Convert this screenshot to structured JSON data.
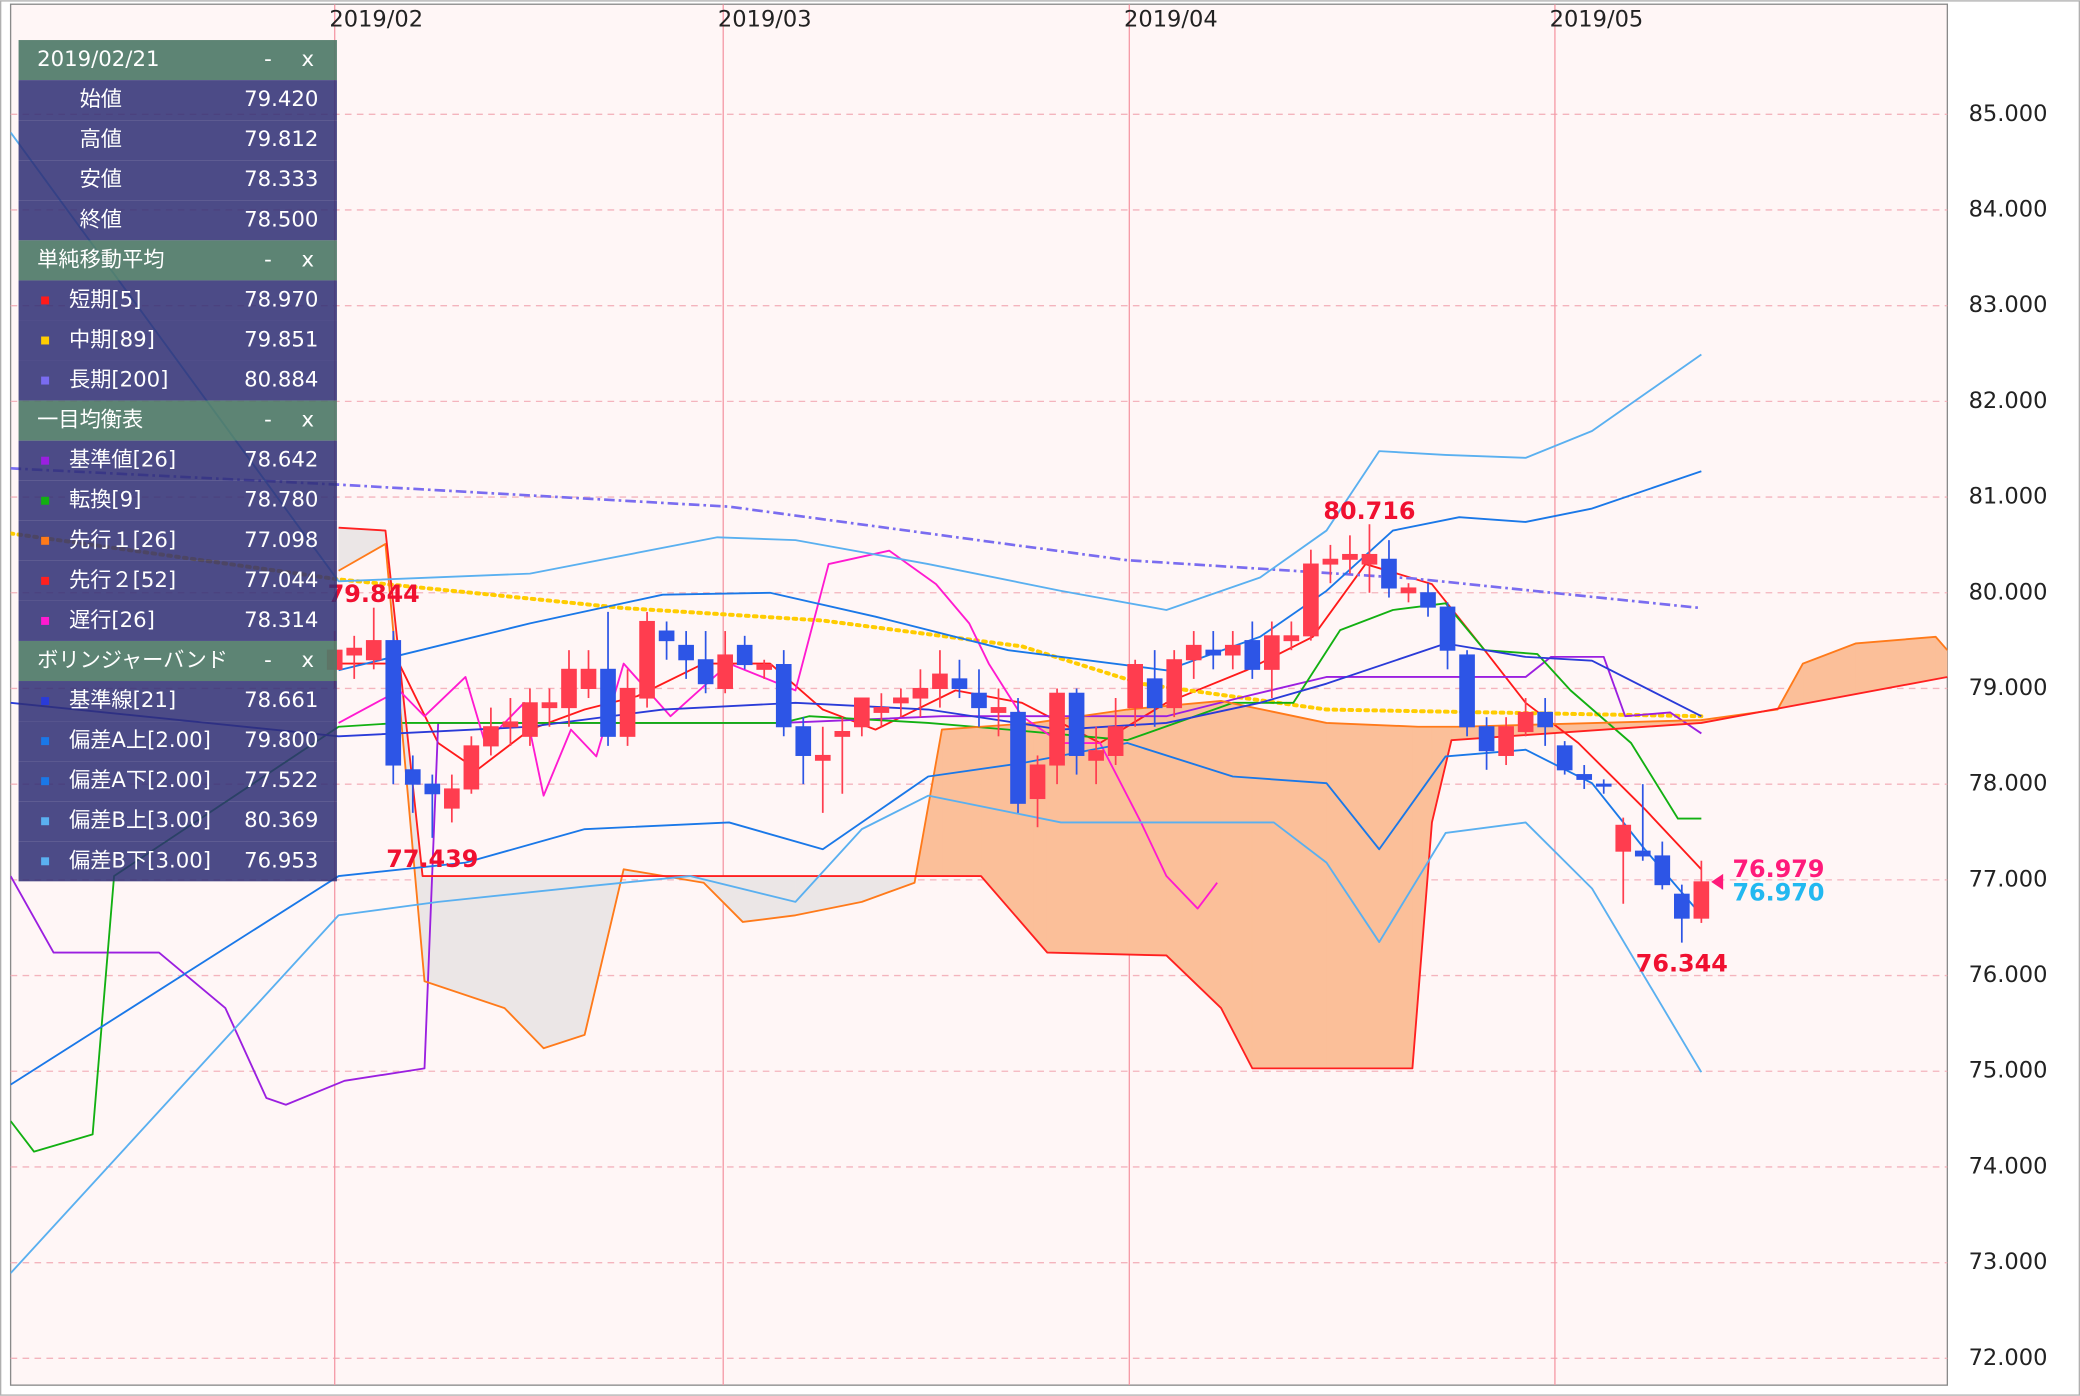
{
  "chart_data": {
    "type": "candlestick",
    "xlim": [
      -16.6,
      82.6
    ],
    "ylim": [
      71.72,
      86.15
    ],
    "xticks": [
      {
        "value": 0,
        "label": "2019/02"
      },
      {
        "value": 19.9,
        "label": "2019/03"
      },
      {
        "value": 40.7,
        "label": "2019/04"
      },
      {
        "value": 62.5,
        "label": "2019/05"
      }
    ],
    "yticks": [
      {
        "value": 72,
        "label": "72.000"
      },
      {
        "value": 73,
        "label": "73.000"
      },
      {
        "value": 74,
        "label": "74.000"
      },
      {
        "value": 75,
        "label": "75.000"
      },
      {
        "value": 76,
        "label": "76.000"
      },
      {
        "value": 77,
        "label": "77.000"
      },
      {
        "value": 78,
        "label": "78.000"
      },
      {
        "value": 79,
        "label": "79.000"
      },
      {
        "value": 80,
        "label": "80.000"
      },
      {
        "value": 81,
        "label": "81.000"
      },
      {
        "value": 82,
        "label": "82.000"
      },
      {
        "value": 83,
        "label": "83.000"
      },
      {
        "value": 84,
        "label": "84.000"
      },
      {
        "value": 85,
        "label": "85.000"
      }
    ],
    "grid": true,
    "up_color": "#ff3d4f",
    "down_color": "#2d55e6",
    "x": [
      0,
      1,
      2,
      3,
      4,
      5,
      6,
      7,
      8,
      9,
      10,
      11,
      12,
      13,
      14,
      15,
      16,
      17,
      18,
      19,
      20,
      21,
      22,
      23,
      24,
      25,
      26,
      27,
      28,
      29,
      30,
      31,
      32,
      33,
      34,
      35,
      36,
      37,
      38,
      39,
      40,
      41,
      42,
      43,
      44,
      45,
      46,
      47,
      48,
      49,
      50,
      51,
      52,
      53,
      54,
      55,
      56,
      57,
      58,
      59,
      60,
      61,
      62,
      63,
      64,
      65,
      66,
      67,
      68,
      69,
      70
    ],
    "open": [
      79.2,
      79.35,
      79.3,
      79.5,
      78.15,
      78.0,
      77.75,
      77.95,
      78.4,
      78.6,
      78.5,
      78.8,
      78.8,
      79.0,
      79.2,
      78.5,
      78.9,
      79.6,
      79.45,
      79.3,
      79.0,
      79.45,
      79.2,
      79.25,
      78.6,
      78.25,
      78.5,
      78.6,
      78.75,
      78.85,
      78.9,
      79.0,
      79.1,
      78.95,
      78.75,
      78.75,
      77.85,
      78.2,
      78.95,
      78.25,
      78.3,
      78.8,
      79.1,
      78.8,
      79.3,
      79.4,
      79.35,
      79.5,
      79.2,
      79.5,
      79.55,
      80.3,
      80.35,
      80.3,
      80.35,
      80.0,
      80.0,
      79.85,
      79.35,
      78.6,
      78.3,
      78.55,
      78.75,
      78.4,
      78.1,
      78.0,
      77.3,
      77.3,
      77.25,
      76.85,
      76.6
    ],
    "high": [
      79.6,
      79.55,
      79.844,
      79.6,
      78.3,
      78.1,
      78.1,
      78.5,
      78.8,
      78.9,
      79.0,
      79.0,
      79.4,
      79.4,
      79.8,
      79.2,
      79.8,
      79.7,
      79.6,
      79.6,
      79.6,
      79.55,
      79.3,
      79.4,
      78.7,
      78.6,
      78.7,
      78.9,
      78.95,
      79.0,
      79.2,
      79.4,
      79.3,
      79.2,
      79.0,
      78.9,
      78.3,
      79.0,
      79.0,
      78.6,
      78.9,
      79.3,
      79.4,
      79.4,
      79.6,
      79.6,
      79.6,
      79.7,
      79.7,
      79.7,
      80.45,
      80.5,
      80.6,
      80.716,
      80.55,
      80.1,
      80.1,
      79.9,
      79.4,
      78.7,
      78.7,
      78.9,
      78.9,
      78.45,
      78.2,
      78.05,
      77.65,
      78.0,
      77.4,
      76.95,
      77.2
    ],
    "low": [
      79.0,
      79.1,
      79.2,
      78.0,
      77.7,
      77.439,
      77.6,
      77.9,
      78.3,
      78.4,
      78.4,
      78.6,
      78.6,
      78.9,
      78.4,
      78.4,
      78.8,
      79.3,
      79.1,
      78.95,
      78.95,
      79.2,
      79.1,
      78.5,
      78.0,
      77.7,
      77.9,
      78.5,
      78.6,
      78.7,
      78.7,
      78.8,
      78.9,
      78.6,
      78.5,
      77.7,
      77.55,
      78.0,
      78.1,
      78.0,
      78.2,
      78.6,
      78.6,
      78.7,
      79.1,
      79.2,
      79.2,
      79.1,
      78.9,
      79.4,
      79.5,
      80.1,
      80.2,
      80.0,
      79.95,
      79.9,
      79.75,
      79.2,
      78.5,
      78.15,
      78.2,
      78.5,
      78.4,
      78.1,
      77.95,
      77.9,
      76.75,
      77.2,
      76.9,
      76.344,
      76.55
    ],
    "close": [
      79.4,
      79.42,
      79.5,
      78.2,
      78.0,
      77.9,
      77.95,
      78.4,
      78.6,
      78.65,
      78.85,
      78.85,
      79.2,
      79.2,
      78.5,
      79.0,
      79.7,
      79.5,
      79.3,
      79.05,
      79.35,
      79.25,
      79.25,
      78.6,
      78.3,
      78.3,
      78.55,
      78.9,
      78.8,
      78.9,
      79.0,
      79.15,
      79.0,
      78.8,
      78.8,
      77.8,
      78.2,
      78.95,
      78.3,
      78.35,
      78.6,
      79.25,
      78.8,
      79.3,
      79.45,
      79.35,
      79.45,
      79.2,
      79.55,
      79.55,
      80.3,
      80.35,
      80.4,
      80.4,
      80.05,
      80.05,
      79.85,
      79.4,
      78.6,
      78.35,
      78.6,
      78.75,
      78.6,
      78.15,
      78.05,
      77.98,
      77.57,
      77.25,
      76.95,
      76.6,
      76.979
    ],
    "price_labels": [
      {
        "x": 2,
        "value": 79.844,
        "label": "79.844"
      },
      {
        "x": 5,
        "value": 77.439,
        "label": "77.439"
      },
      {
        "x": 53,
        "value": 80.716,
        "label": "80.716"
      },
      {
        "x": 69,
        "value": 76.344,
        "label": "76.344"
      }
    ],
    "last_prices": [
      {
        "value": 76.979,
        "label": "76.979",
        "color": "#ff1a7a"
      },
      {
        "value": 76.97,
        "label": "76.970",
        "color": "#22b8f0"
      }
    ],
    "controls": [
      "-",
      "x"
    ],
    "panel": [
      {
        "title": "2019/02/21",
        "rows": [
          {
            "name": "始値",
            "value": "79.420"
          },
          {
            "name": "高値",
            "value": "79.812"
          },
          {
            "name": "安値",
            "value": "78.333"
          },
          {
            "name": "終値",
            "value": "78.500"
          }
        ]
      },
      {
        "title": "単純移動平均",
        "rows": [
          {
            "name": "短期[5]",
            "value": "78.970",
            "color": "#ff1a1a",
            "x": [
              0.2,
              3.3,
              5.3,
              7.3,
              10.0,
              12.8,
              15.5,
              18.9,
              22.3,
              25.0,
              27.7,
              31.8,
              35.2,
              39.2,
              42.6,
              46.7,
              50.1,
              52.8,
              56.2,
              58.9,
              61.0,
              63.7,
              67.1,
              70
            ],
            "values": [
              79.26,
              79.26,
              78.43,
              78.15,
              78.57,
              78.78,
              78.92,
              79.26,
              79.26,
              78.78,
              78.57,
              78.98,
              78.85,
              78.43,
              78.85,
              79.19,
              79.54,
              80.3,
              80.09,
              79.4,
              78.85,
              78.43,
              77.74,
              77.11
            ]
          },
          {
            "name": "中期[89]",
            "value": "79.851",
            "color": "#ffcc00",
            "style": "dot",
            "x": [
              -16.6,
              0.2,
              14.8,
              25.0,
              35.2,
              41.3,
              50.8,
              70
            ],
            "values": [
              80.62,
              80.14,
              79.84,
              79.71,
              79.44,
              79.05,
              78.78,
              78.71
            ]
          },
          {
            "name": "長期[200]",
            "value": "80.884",
            "color": "#7a6cf0",
            "style": "dashdot",
            "x": [
              -16.6,
              0.2,
              20.2,
              40.6,
              55.2,
              70
            ],
            "values": [
              81.3,
              81.13,
              80.9,
              80.34,
              80.15,
              79.84
            ]
          }
        ]
      },
      {
        "title": "一目均衡表",
        "rows": [
          {
            "name": "基準値[26]",
            "value": "78.642",
            "color": "#9b1fe0",
            "x": [
              -16.6,
              -14.4,
              -9.0,
              -5.6,
              -3.5,
              -2.5,
              0.5,
              4.6,
              5.3,
              22.9,
              31.1,
              35.8,
              42.6,
              46.7,
              50.8,
              61.0,
              62.3,
              65.0,
              66.1,
              68.4,
              70
            ],
            "values": [
              77.04,
              76.24,
              76.24,
              75.66,
              74.72,
              74.65,
              74.9,
              75.03,
              78.64,
              78.64,
              78.71,
              78.71,
              78.71,
              78.92,
              79.12,
              79.12,
              79.33,
              79.33,
              78.71,
              78.75,
              78.53
            ]
          },
          {
            "name": "転換[9]",
            "value": "78.780",
            "color": "#12b012",
            "x": [
              -16.6,
              -15.4,
              -12.4,
              -11.3,
              0.2,
              3.3,
              22.9,
              24.3,
              30.4,
              34.5,
              40.6,
              46.0,
              49.1,
              51.5,
              54.2,
              56.9,
              58.9,
              61.6,
              63.3,
              66.4,
              68.8,
              70
            ],
            "values": [
              74.48,
              74.16,
              74.34,
              77.04,
              78.6,
              78.64,
              78.64,
              78.71,
              78.64,
              78.57,
              78.46,
              78.85,
              78.85,
              79.61,
              79.82,
              79.89,
              79.4,
              79.36,
              78.98,
              78.43,
              77.64,
              77.64
            ]
          },
          {
            "name": "先行１[26]",
            "value": "77.098",
            "color": "#ff7a1a",
            "fill": "#fbbf99",
            "x": [
              0.2,
              2.6,
              4.6,
              8.7,
              10.7,
              12.8,
              14.8,
              18.9,
              20.9,
              23.6,
              27.0,
              29.7,
              31.1,
              35.8,
              40.6,
              45.4,
              50.8,
              55.5,
              57.6,
              70,
              73.9,
              75.2,
              77.9,
              82.0,
              82.6
            ],
            "values": [
              80.23,
              80.51,
              75.94,
              75.66,
              75.24,
              75.38,
              77.11,
              76.97,
              76.56,
              76.63,
              76.77,
              76.97,
              78.57,
              78.64,
              78.78,
              78.87,
              78.64,
              78.6,
              78.6,
              78.67,
              78.78,
              79.26,
              79.47,
              79.54,
              79.4
            ]
          },
          {
            "name": "先行２[52]",
            "value": "77.044",
            "color": "#ff2020",
            "fill": "#ebe6e6",
            "x": [
              0.2,
              2.6,
              4.5,
              29.1,
              33.1,
              36.5,
              42.6,
              45.4,
              47.0,
              55.2,
              56.2,
              57.2,
              70,
              82.6
            ],
            "values": [
              80.68,
              80.65,
              77.04,
              77.04,
              77.04,
              76.24,
              76.21,
              75.66,
              75.03,
              75.03,
              77.6,
              78.46,
              78.64,
              79.12
            ]
          },
          {
            "name": "遅行[26]",
            "value": "78.314",
            "color": "#ff1ad0",
            "x": [
              0.2,
              3.3,
              4.6,
              6.7,
              7.7,
              9.7,
              10.7,
              12.1,
              13.4,
              14.8,
              17.2,
              20.2,
              23.6,
              25.3,
              28.4,
              30.8,
              32.5,
              33.5,
              35.2,
              37.2,
              39.2,
              41.3,
              42.6,
              44.2,
              45.2
            ],
            "values": [
              78.64,
              78.98,
              78.71,
              79.12,
              78.43,
              78.85,
              77.88,
              78.57,
              78.29,
              79.26,
              78.71,
              79.26,
              78.98,
              80.3,
              80.44,
              80.09,
              79.68,
              79.26,
              78.71,
              78.43,
              78.43,
              77.6,
              77.04,
              76.7,
              76.97
            ]
          }
        ]
      },
      {
        "title": "ボリンジャーバンド",
        "rows": [
          {
            "name": "基準線[21]",
            "value": "78.661",
            "color": "#2a3bd8",
            "x": [
              -16.6,
              0.2,
              10.0,
              16.8,
              23.6,
              30.4,
              37.2,
              42.6,
              47.4,
              50.8,
              56.9,
              61.0,
              64.4,
              70
            ],
            "values": [
              78.85,
              78.5,
              78.6,
              78.78,
              78.85,
              78.78,
              78.57,
              78.64,
              78.85,
              79.05,
              79.47,
              79.33,
              79.29,
              78.71
            ]
          },
          {
            "name": "偏差A上[2.00]",
            "value": "79.800",
            "color": "#1a78e8",
            "x": [
              0.2,
              10.0,
              16.8,
              22.3,
              27.7,
              34.5,
              42.6,
              47.4,
              50.8,
              54.2,
              57.6,
              61.0,
              64.4,
              70
            ],
            "values": [
              79.19,
              79.68,
              79.98,
              80.0,
              79.75,
              79.4,
              79.19,
              79.54,
              80.02,
              80.65,
              80.79,
              80.74,
              80.88,
              81.27
            ]
          },
          {
            "name": "偏差A下[2.00]",
            "value": "77.522",
            "color": "#1a78e8",
            "x": [
              -16.6,
              0.2,
              6.7,
              12.8,
              20.2,
              25.0,
              30.4,
              35.2,
              40.6,
              46.0,
              50.8,
              53.5,
              56.9,
              61.0,
              64.4,
              67.1,
              70
            ],
            "values": [
              74.86,
              77.04,
              77.18,
              77.53,
              77.6,
              77.32,
              78.08,
              78.22,
              78.43,
              78.08,
              78.01,
              77.32,
              78.29,
              78.36,
              78.01,
              77.32,
              76.63
            ]
          },
          {
            "name": "偏差B上[3.00]",
            "value": "80.369",
            "color": "#5ab0f0",
            "x": [
              -16.6,
              0.2,
              10.0,
              19.6,
              23.6,
              30.4,
              37.2,
              42.6,
              47.4,
              50.8,
              53.5,
              56.9,
              61.0,
              64.4,
              70
            ],
            "values": [
              84.81,
              80.12,
              80.2,
              80.58,
              80.55,
              80.3,
              80.02,
              79.82,
              80.16,
              80.65,
              81.48,
              81.44,
              81.41,
              81.69,
              82.49
            ]
          },
          {
            "name": "偏差B下[3.00]",
            "value": "76.953",
            "color": "#5ab0f0",
            "x": [
              -16.6,
              0.2,
              5.3,
              12.8,
              18.2,
              23.6,
              27.0,
              30.4,
              37.2,
              42.0,
              48.1,
              50.8,
              53.5,
              56.9,
              61.0,
              64.4,
              70
            ],
            "values": [
              72.89,
              76.63,
              76.77,
              76.93,
              77.04,
              76.77,
              77.53,
              77.88,
              77.6,
              77.6,
              77.6,
              77.18,
              76.35,
              77.49,
              77.6,
              76.91,
              74.99
            ]
          }
        ]
      }
    ]
  }
}
